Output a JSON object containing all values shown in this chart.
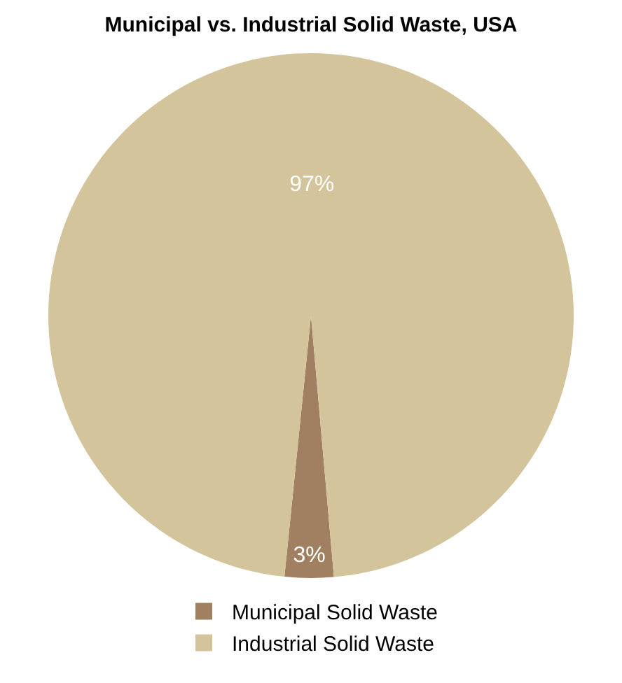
{
  "chart_data": {
    "type": "pie",
    "title": "Municipal vs. Industrial Solid Waste, USA",
    "categories": [
      "Municipal Solid Waste",
      "Industrial Solid Waste"
    ],
    "values": [
      3,
      97
    ],
    "colors": [
      "#a08060",
      "#d3c49b"
    ],
    "value_labels": [
      "3%",
      "97%"
    ],
    "legend": "bottom"
  }
}
